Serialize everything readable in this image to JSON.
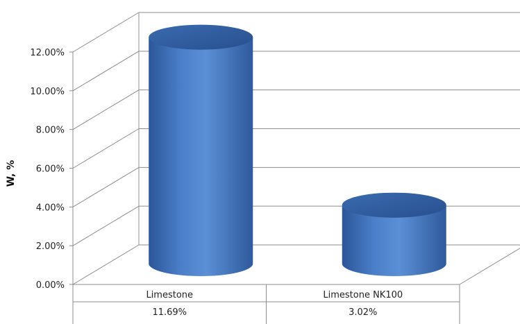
{
  "chart_data": {
    "type": "bar",
    "style": "3d-cylinder",
    "title": "",
    "xlabel": "",
    "ylabel": "W, %",
    "categories": [
      "Limestone",
      "Limestone NK100"
    ],
    "values": [
      11.69,
      3.02
    ],
    "value_labels": [
      "11.69%",
      "3.02%"
    ],
    "ylim": [
      0,
      12
    ],
    "yticks": [
      "0.00%",
      "2.00%",
      "4.00%",
      "6.00%",
      "8.00%",
      "10.00%",
      "12.00%"
    ],
    "grid": true,
    "legend": "none",
    "data_table": true,
    "colors": {
      "bar": "#4a7ec8",
      "bar_dark": "#2c5698",
      "bar_top": "#2e5c9e",
      "grid": "#8c8c8c"
    }
  }
}
